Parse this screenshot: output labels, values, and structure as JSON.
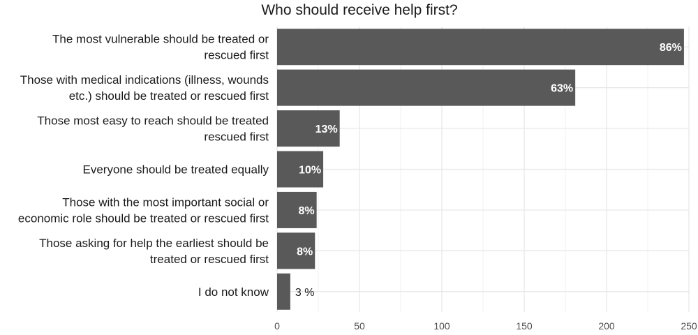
{
  "chart_data": {
    "type": "bar",
    "orientation": "horizontal",
    "title": "Who should receive help first?",
    "xlabel": "",
    "ylabel": "",
    "xlim": [
      0,
      250
    ],
    "x_ticks": [
      0,
      50,
      100,
      150,
      200,
      250
    ],
    "grid": true,
    "bar_color": "#595959",
    "categories": [
      [
        "The most vulnerable should be treated or",
        "rescued first"
      ],
      [
        "Those with medical indications (illness, wounds",
        "etc.) should be treated or rescued first"
      ],
      [
        "Those most easy to reach should be treated",
        "rescued first"
      ],
      [
        "Everyone should be treated equally"
      ],
      [
        "Those with the most important social or",
        "economic role should be treated or rescued first"
      ],
      [
        "Those asking for help the earliest should be",
        "treated or rescued first"
      ],
      [
        "I do not know"
      ]
    ],
    "values": [
      247,
      181,
      38,
      28,
      24,
      23,
      8
    ],
    "data_labels": [
      "86%",
      "63%",
      "13%",
      "10%",
      "8%",
      "8%",
      "3 %"
    ]
  }
}
